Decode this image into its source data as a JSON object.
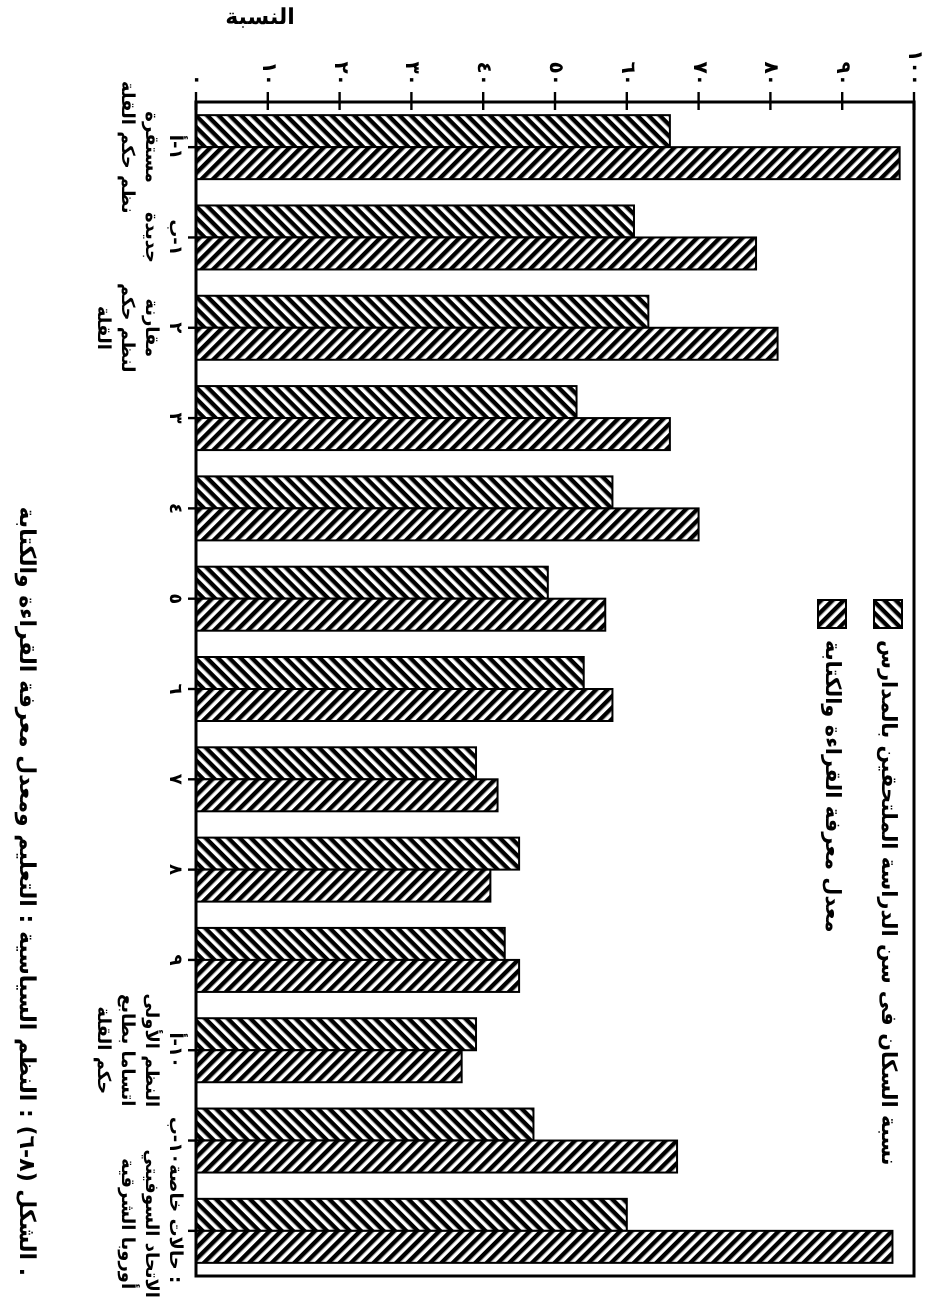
{
  "chart_data": {
    "type": "bar",
    "xlabel": "النسبة",
    "orientation": "horizontal",
    "categories": [
      "١-أ\nمستقرة\nنظم حكم القلة",
      "١-ب\nجديدة",
      "٢\nمقارنة\nلنظم حكم\nالقلة",
      "٣",
      "٤",
      "٥",
      "٦",
      "٧",
      "٨",
      "٩",
      "١٠-أ\nالنظم الأولى\nاتساما بطابع\nحكم القلة",
      "١٠-ب",
      "حالات خاصة :\nالاتحاد السوفيتي\nأوروبا الشرقية"
    ],
    "series": [
      {
        "name": "نسبة السكان فى سن الدراسة الملتحقين بالمدارس",
        "color": "#000000",
        "values": [
          66,
          61,
          63,
          53,
          58,
          49,
          54,
          39,
          45,
          43,
          39,
          47,
          60
        ]
      },
      {
        "name": "معدل معرفة القراءة والكتابة",
        "color": "#000000",
        "values": [
          98,
          78,
          81,
          66,
          70,
          57,
          58,
          42,
          41,
          45,
          37,
          67,
          97
        ]
      }
    ],
    "xlim": [
      0,
      100
    ],
    "xticks": [
      {
        "value": 0,
        "label": "٠"
      },
      {
        "value": 10,
        "label": "١٠"
      },
      {
        "value": 20,
        "label": "٢٠"
      },
      {
        "value": 30,
        "label": "٣٠"
      },
      {
        "value": 40,
        "label": "٤٠"
      },
      {
        "value": 50,
        "label": "٥٠"
      },
      {
        "value": 60,
        "label": "٦٠"
      },
      {
        "value": 70,
        "label": "٧٠"
      },
      {
        "value": 80,
        "label": "٨٠"
      },
      {
        "value": 90,
        "label": "٩٠"
      },
      {
        "value": 100,
        "label": "١٠٠"
      }
    ],
    "legend": "bottom right",
    "annotations": [
      "الشكل (٨-٦) : النظم السياسية : التعليم ومعدل معرفة القراءة والكتابة ."
    ]
  }
}
